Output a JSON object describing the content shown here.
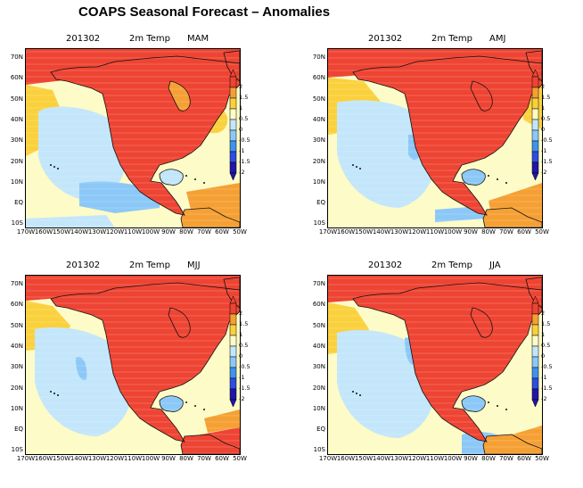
{
  "title": "COAPS Seasonal Forecast – Anomalies",
  "panels": [
    {
      "date": "201302",
      "variable": "2m Temp",
      "season": "MAM"
    },
    {
      "date": "201302",
      "variable": "2m Temp",
      "season": "AMJ"
    },
    {
      "date": "201302",
      "variable": "2m Temp",
      "season": "MJJ"
    },
    {
      "date": "201302",
      "variable": "2m Temp",
      "season": "JJA"
    }
  ],
  "lat_labels": [
    "70N",
    "60N",
    "50N",
    "40N",
    "30N",
    "20N",
    "10N",
    "EQ",
    "10S"
  ],
  "lon_labels": [
    "170W",
    "160W",
    "150W",
    "140W",
    "130W",
    "120W",
    "110W",
    "100W",
    "90W",
    "80W",
    "70W",
    "60W",
    "50W"
  ],
  "colorbar": {
    "labels": [
      "2",
      "1.5",
      "1",
      "0.5",
      "0",
      "-0.5",
      "-1",
      "-1.5",
      "-2"
    ],
    "colors": [
      "#ee4433",
      "#f5a034",
      "#fad13d",
      "#fdfbc6",
      "#c3e6fb",
      "#8cc8f7",
      "#4092ee",
      "#2c4fe0",
      "#2216a8"
    ]
  }
}
